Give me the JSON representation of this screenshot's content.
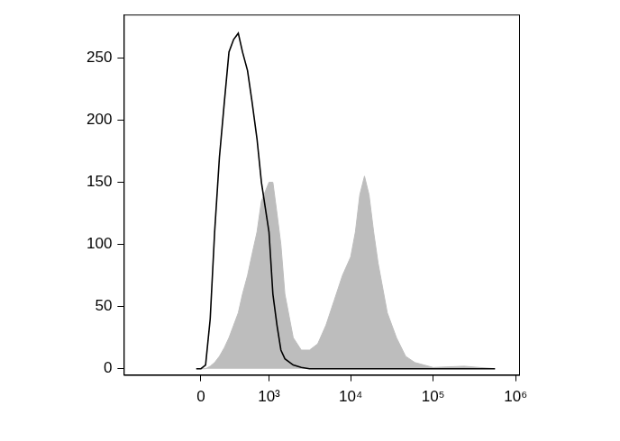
{
  "chart_data": {
    "type": "line",
    "x": [
      -40,
      0,
      40,
      80,
      120,
      165,
      215,
      265,
      320,
      380,
      440,
      520,
      600,
      700,
      800,
      1000,
      1120,
      1260,
      1410,
      1580,
      2000,
      2510,
      3160,
      3980,
      5010,
      6310,
      7940,
      10000,
      11400,
      12900,
      14700,
      16700,
      19000,
      21500,
      27800,
      35900,
      46400,
      59900,
      77400,
      100000,
      237000,
      562000
    ],
    "series": [
      {
        "color": "#bdbdbd",
        "type": "area",
        "values": [
          0,
          0,
          0,
          2,
          5,
          10,
          17,
          25,
          35,
          45,
          60,
          75,
          92,
          110,
          135,
          150,
          150,
          125,
          100,
          60,
          25,
          15,
          15,
          20,
          35,
          55,
          75,
          90,
          110,
          140,
          155,
          140,
          110,
          85,
          45,
          25,
          10,
          5,
          3,
          1,
          2,
          0
        ]
      },
      {
        "color": "#000000",
        "type": "line",
        "values": [
          0,
          0,
          3,
          40,
          110,
          170,
          215,
          255,
          265,
          270,
          255,
          240,
          215,
          185,
          150,
          110,
          60,
          35,
          15,
          8,
          3,
          1,
          0,
          0,
          0,
          0,
          0,
          0,
          0,
          0,
          0,
          0,
          0,
          0,
          0,
          0,
          0,
          0,
          0,
          0,
          0,
          0
        ]
      }
    ],
    "xlim": [
      -1300,
      1100000
    ],
    "xticks": [
      0,
      {
        "value": 1000,
        "label": "10³"
      },
      {
        "value": 10000,
        "label": "10⁴"
      },
      {
        "value": 100000,
        "label": "10⁵"
      },
      {
        "value": 1000000,
        "label": "10⁶"
      }
    ],
    "ylim": [
      -5,
      285
    ],
    "yticks": [
      0,
      50,
      100,
      150,
      200,
      250
    ],
    "grid": false,
    "marker": "none"
  }
}
